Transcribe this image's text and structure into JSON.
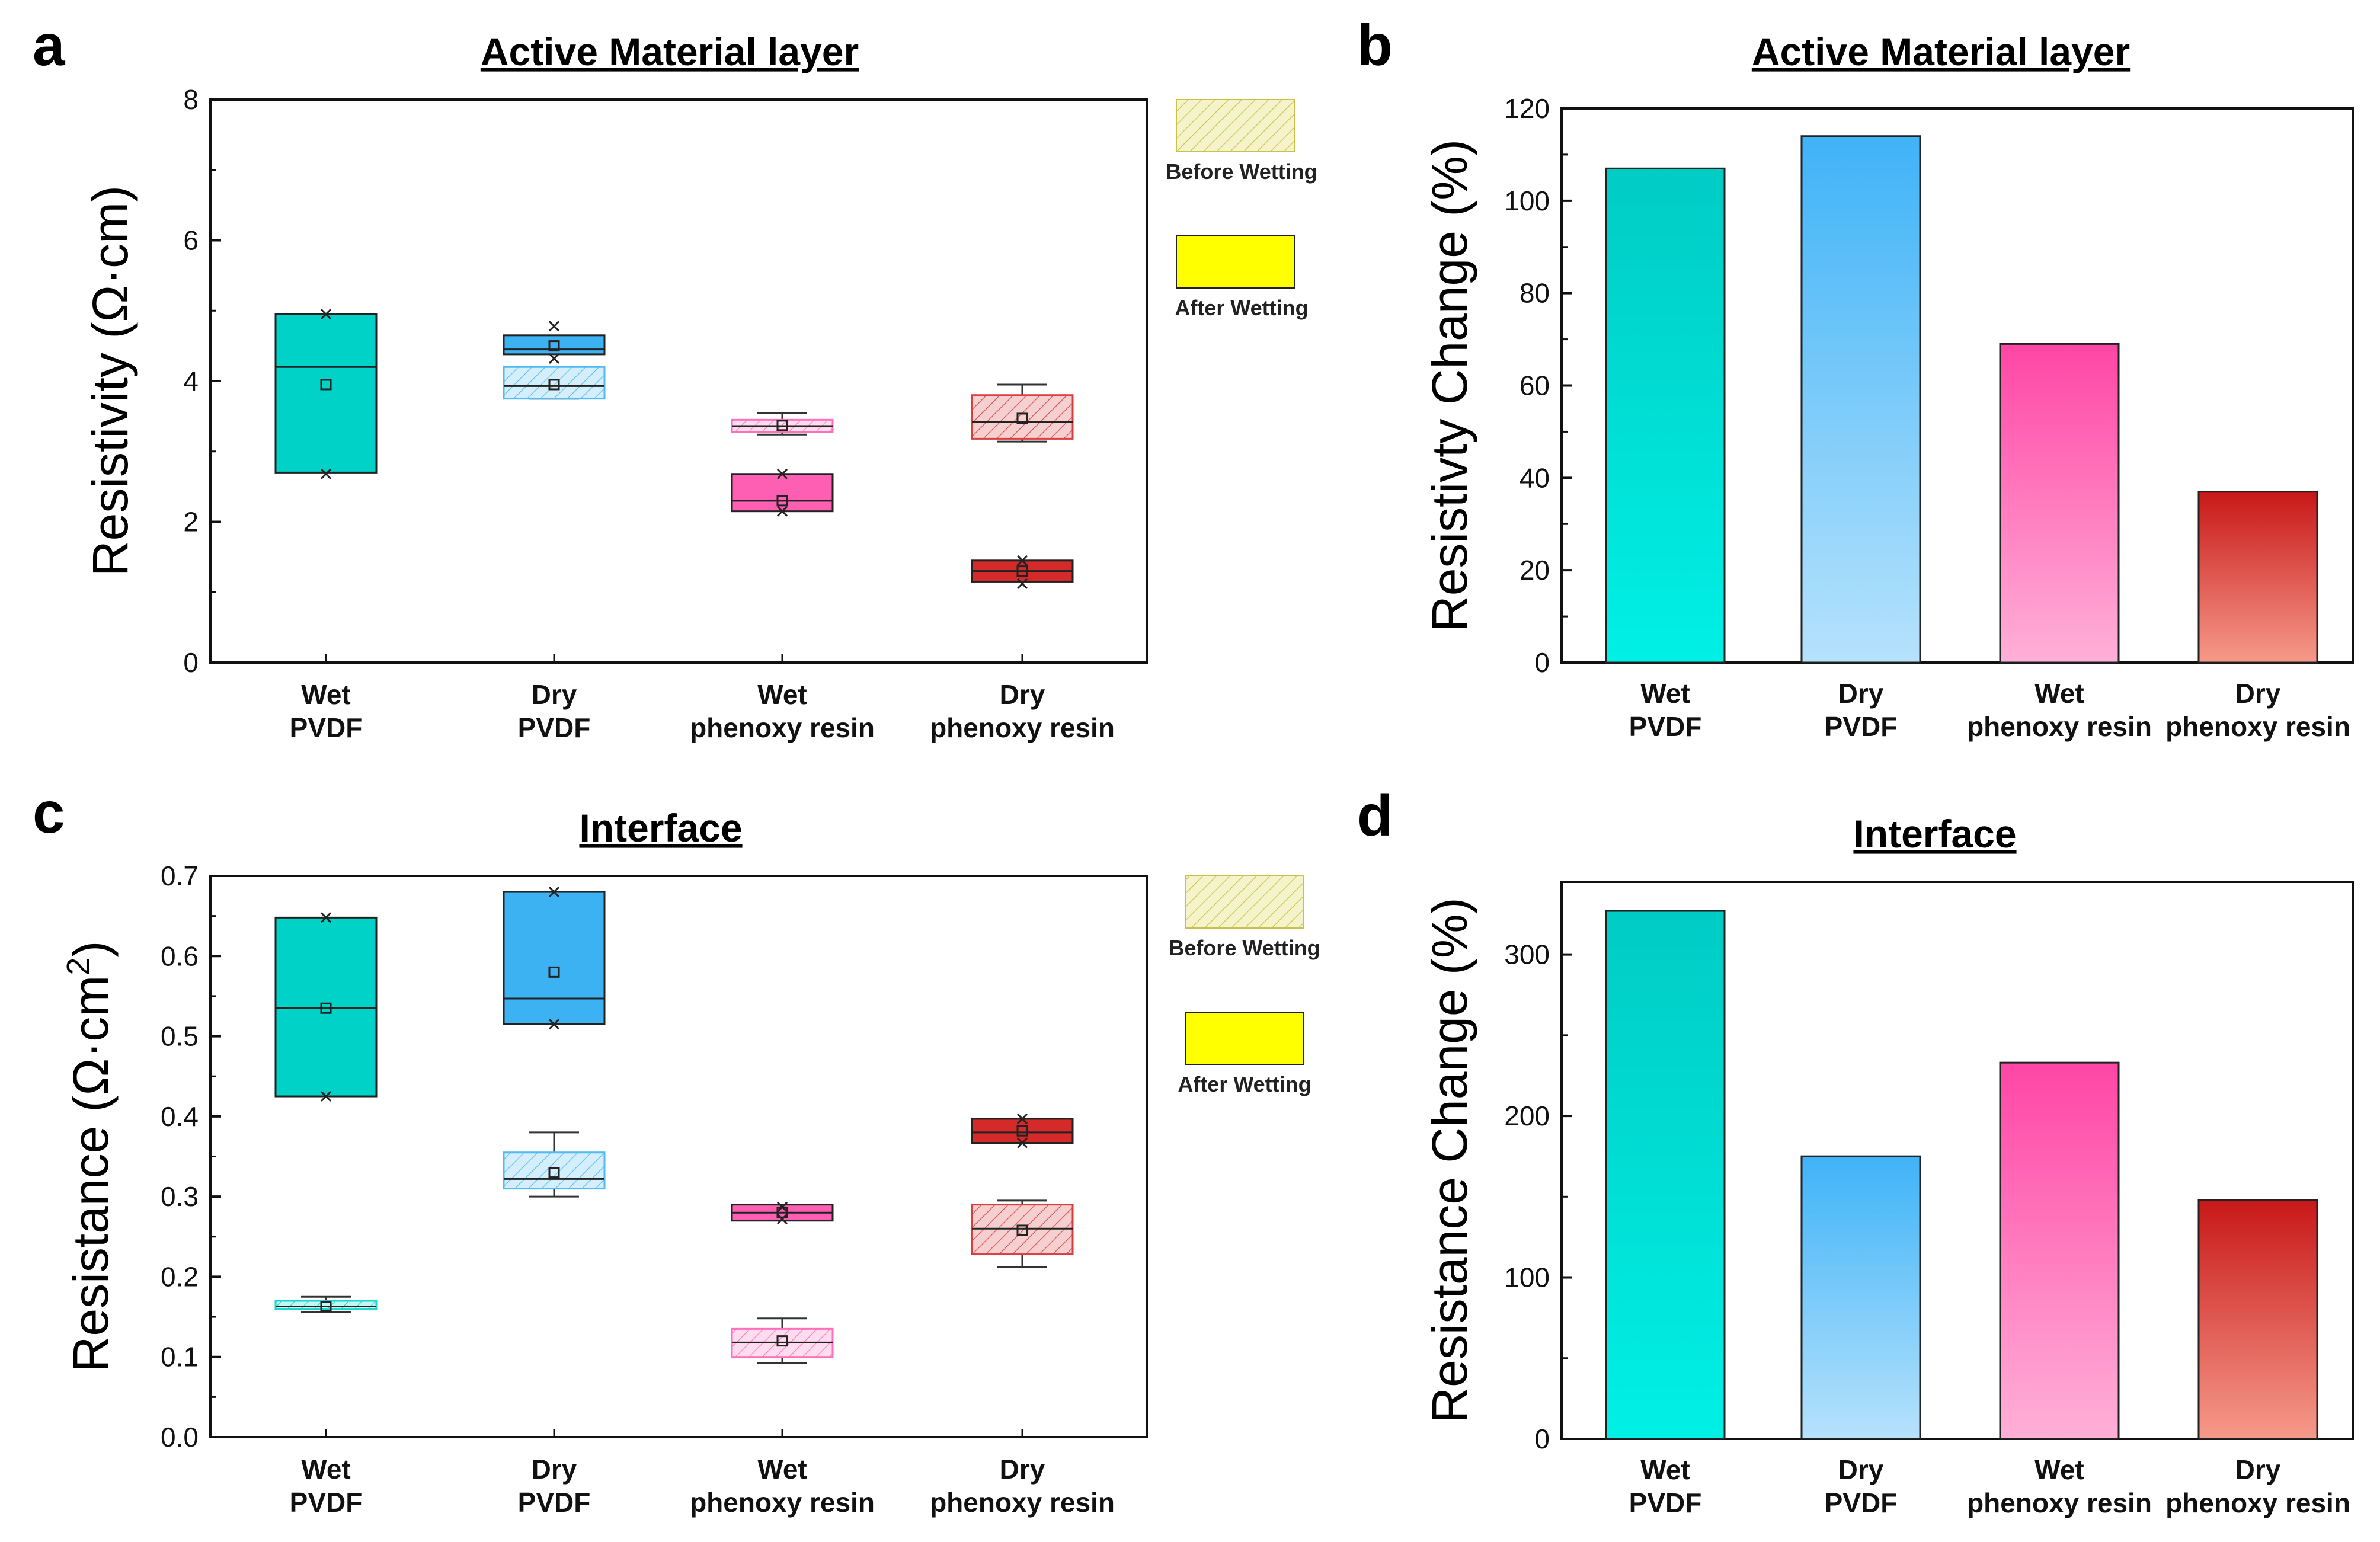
{
  "chart_data": [
    {
      "panel": "a",
      "type": "box",
      "title": "Active Material layer",
      "ylabel": "Resistivity (Ω·cm)",
      "ylim": [
        0,
        8
      ],
      "yticks": [
        "0",
        "2",
        "4",
        "6",
        "8"
      ],
      "categories": [
        [
          "Wet",
          "PVDF"
        ],
        [
          "Dry",
          "PVDF"
        ],
        [
          "Wet",
          "phenoxy resin"
        ],
        [
          "Dry",
          "phenoxy resin"
        ]
      ],
      "legend": [
        "Before Wetting",
        "After Wetting"
      ],
      "colors": [
        "#00d2c8",
        "#3db2f2",
        "#ff5fb3",
        "#d42a2a"
      ],
      "series": [
        {
          "name": "Before Wetting",
          "boxes": [
            {
              "q1": 3.4,
              "median": 3.75,
              "q3": 4.0,
              "mean": 3.75,
              "wlo": null,
              "whi": null,
              "xlo": null,
              "xhi": null
            },
            {
              "q1": 3.75,
              "median": 3.93,
              "q3": 4.2,
              "mean": 3.95,
              "wlo": 3.75,
              "whi": 4.2,
              "xlo": null,
              "xhi": null
            },
            {
              "q1": 3.28,
              "median": 3.36,
              "q3": 3.45,
              "mean": 3.37,
              "wlo": 3.24,
              "whi": 3.55,
              "xlo": null,
              "xhi": null
            },
            {
              "q1": 3.18,
              "median": 3.42,
              "q3": 3.8,
              "mean": 3.47,
              "wlo": 3.14,
              "whi": 3.95,
              "xlo": null,
              "xhi": null
            }
          ]
        },
        {
          "name": "After Wetting",
          "boxes": [
            {
              "q1": 2.7,
              "median": 4.2,
              "q3": 4.95,
              "mean": 3.95,
              "wlo": null,
              "whi": null,
              "xlo": 2.68,
              "xhi": 4.95
            },
            {
              "q1": 4.38,
              "median": 4.45,
              "q3": 4.65,
              "mean": 4.5,
              "wlo": null,
              "whi": null,
              "xlo": 4.32,
              "xhi": 4.78
            },
            {
              "q1": 2.15,
              "median": 2.3,
              "q3": 2.68,
              "mean": 2.3,
              "wlo": null,
              "whi": null,
              "xlo": 2.15,
              "xhi": 2.68
            },
            {
              "q1": 1.15,
              "median": 1.3,
              "q3": 1.45,
              "mean": 1.3,
              "wlo": null,
              "whi": null,
              "xlo": 1.12,
              "xhi": 1.45
            }
          ]
        }
      ]
    },
    {
      "panel": "b",
      "type": "bar",
      "title": "Active Material layer",
      "ylabel": "Resistivty Change (%)",
      "ylim": [
        0,
        120
      ],
      "yticks": [
        "0",
        "20",
        "40",
        "60",
        "80",
        "100",
        "120"
      ],
      "categories": [
        [
          "Wet",
          "PVDF"
        ],
        [
          "Dry",
          "PVDF"
        ],
        [
          "Wet",
          "phenoxy resin"
        ],
        [
          "Dry",
          "phenoxy resin"
        ]
      ],
      "values": [
        107,
        114,
        69,
        37
      ],
      "colors": [
        [
          "#00f0e6",
          "#00ccc4"
        ],
        [
          "#b6e2fc",
          "#3fb3f7"
        ],
        [
          "#ffb0d8",
          "#ff46a5"
        ],
        [
          "#f69a8a",
          "#c81818"
        ]
      ]
    },
    {
      "panel": "c",
      "type": "box",
      "title": "Interface",
      "ylabel": "Resistance (Ω·cm",
      "ylabel_sup": "2",
      "ylabel_end": ")",
      "ylim": [
        0,
        0.7
      ],
      "yticks": [
        "0.0",
        "0.1",
        "0.2",
        "0.3",
        "0.4",
        "0.5",
        "0.6",
        "0.7"
      ],
      "categories": [
        [
          "Wet",
          "PVDF"
        ],
        [
          "Dry",
          "PVDF"
        ],
        [
          "Wet",
          "phenoxy resin"
        ],
        [
          "Dry",
          "phenoxy resin"
        ]
      ],
      "legend": [
        "Before Wetting",
        "After Wetting"
      ],
      "colors": [
        "#00d2c8",
        "#3db2f2",
        "#ff5fb3",
        "#d42a2a"
      ],
      "series": [
        {
          "name": "Before Wetting",
          "boxes": [
            {
              "q1": 0.16,
              "median": 0.163,
              "q3": 0.17,
              "mean": 0.163,
              "wlo": 0.156,
              "whi": 0.175,
              "xlo": null,
              "xhi": null
            },
            {
              "q1": 0.31,
              "median": 0.322,
              "q3": 0.355,
              "mean": 0.33,
              "wlo": 0.3,
              "whi": 0.38,
              "xlo": null,
              "xhi": null
            },
            {
              "q1": 0.1,
              "median": 0.118,
              "q3": 0.135,
              "mean": 0.12,
              "wlo": 0.092,
              "whi": 0.148,
              "xlo": null,
              "xhi": null
            },
            {
              "q1": 0.228,
              "median": 0.26,
              "q3": 0.29,
              "mean": 0.258,
              "wlo": 0.212,
              "whi": 0.295,
              "xlo": null,
              "xhi": null
            }
          ]
        },
        {
          "name": "After Wetting",
          "boxes": [
            {
              "q1": 0.425,
              "median": 0.535,
              "q3": 0.648,
              "mean": 0.535,
              "wlo": null,
              "whi": null,
              "xlo": 0.425,
              "xhi": 0.648
            },
            {
              "q1": 0.515,
              "median": 0.547,
              "q3": 0.68,
              "mean": 0.58,
              "wlo": null,
              "whi": null,
              "xlo": 0.515,
              "xhi": 0.68
            },
            {
              "q1": 0.27,
              "median": 0.28,
              "q3": 0.29,
              "mean": 0.28,
              "wlo": null,
              "whi": null,
              "xlo": 0.272,
              "xhi": 0.287
            },
            {
              "q1": 0.367,
              "median": 0.38,
              "q3": 0.397,
              "mean": 0.382,
              "wlo": null,
              "whi": null,
              "xlo": 0.367,
              "xhi": 0.397
            }
          ]
        }
      ]
    },
    {
      "panel": "d",
      "type": "bar",
      "title": "Interface",
      "ylabel": "Resistance Change (%)",
      "ylim": [
        0,
        345
      ],
      "yticks": [
        "0",
        "100",
        "200",
        "300"
      ],
      "categories": [
        [
          "Wet",
          "PVDF"
        ],
        [
          "Dry",
          "PVDF"
        ],
        [
          "Wet",
          "phenoxy resin"
        ],
        [
          "Dry",
          "phenoxy resin"
        ]
      ],
      "values": [
        327,
        175,
        233,
        148
      ],
      "colors": [
        [
          "#00f0e6",
          "#00ccc4"
        ],
        [
          "#b6e2fc",
          "#3fb3f7"
        ],
        [
          "#ffb0d8",
          "#ff46a5"
        ],
        [
          "#f69a8a",
          "#c81818"
        ]
      ]
    }
  ]
}
